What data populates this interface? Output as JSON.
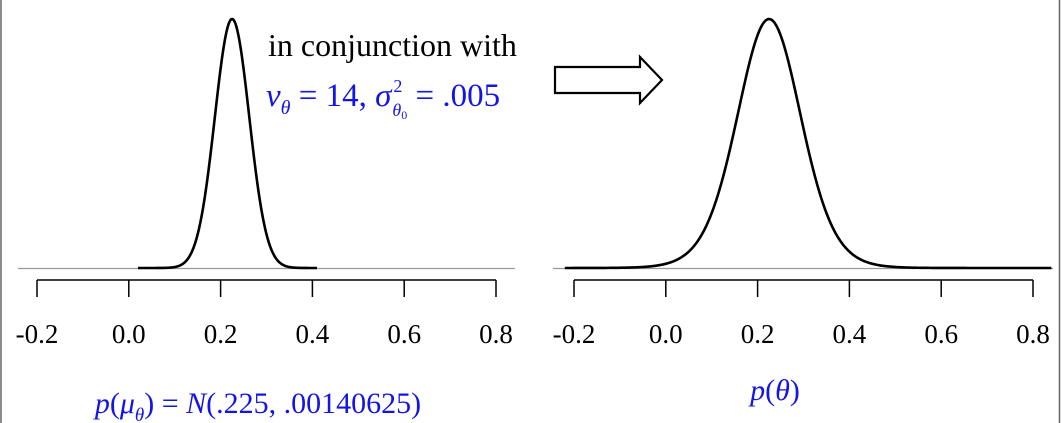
{
  "colors": {
    "curve": "#000000",
    "baseline": "#999999",
    "axis": "#000000",
    "blue": "#1414e6",
    "frame": "#666666"
  },
  "annotation": {
    "line1": "in conjunction with",
    "nu_sym": "ν",
    "nu_sub": "θ",
    "eq1": " = 14, ",
    "sigma_sym": "σ",
    "sigma_sup": "2",
    "sigma_sub": "θ",
    "sigma_subsub": "0",
    "eq2": " = .005"
  },
  "arrow_icon": "right-arrow-icon",
  "chart_data": [
    {
      "type": "line",
      "title": "",
      "xlabel": "p(μθ) = N(.225, .00140625)",
      "xlabel_parts": {
        "p": "p",
        "open": "(",
        "mu": "μ",
        "mu_sub": "θ",
        "eq": ") = ",
        "N": "N",
        "args": "(.225, .00140625)"
      },
      "xlim": [
        -0.2,
        0.8
      ],
      "ticks": [
        -0.2,
        0.0,
        0.2,
        0.4,
        0.6,
        0.8
      ],
      "tick_labels": [
        "-0.2",
        "0.0",
        "0.2",
        "0.4",
        "0.6",
        "0.8"
      ],
      "distribution": {
        "family": "normal",
        "mean": 0.225,
        "variance": 0.00140625
      },
      "support": [
        0.02,
        0.41
      ],
      "baseline_range": [
        -0.22,
        0.84
      ]
    },
    {
      "type": "line",
      "title": "",
      "xlabel": "p(θ)",
      "xlabel_parts": {
        "p": "p",
        "open": "(",
        "theta": "θ",
        "close": ")"
      },
      "xlim": [
        -0.2,
        0.8
      ],
      "ticks": [
        -0.2,
        0.0,
        0.2,
        0.4,
        0.6,
        0.8
      ],
      "tick_labels": [
        "-0.2",
        "0.0",
        "0.2",
        "0.4",
        "0.6",
        "0.8"
      ],
      "distribution": {
        "family": "student-t",
        "location": 0.225,
        "df": 14,
        "scale2": 0.005
      },
      "support": [
        -0.22,
        0.84
      ],
      "baseline_range": [
        -0.22,
        0.84
      ]
    }
  ]
}
